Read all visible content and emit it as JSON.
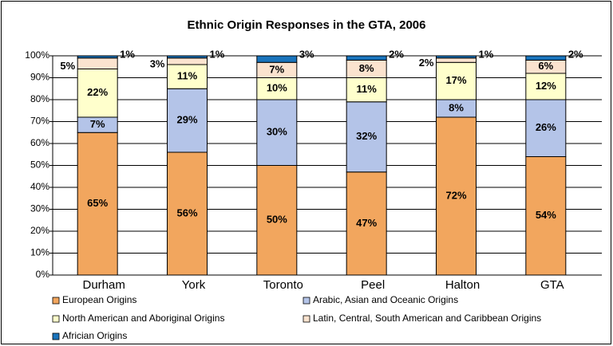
{
  "chart_data": {
    "type": "stacked_bar",
    "title": "Ethnic Origin Responses in the GTA, 2006",
    "categories": [
      "Durham",
      "York",
      "Toronto",
      "Peel",
      "Halton",
      "GTA"
    ],
    "series": [
      {
        "name": "European Origins",
        "color": "#f2a65e",
        "values": [
          65,
          56,
          50,
          47,
          72,
          54
        ],
        "value_labels": [
          "65%",
          "56%",
          "50%",
          "47%",
          "72%",
          "54%"
        ]
      },
      {
        "name": "Arabic, Asian and Oceanic Origins",
        "color": "#b4c4e8",
        "values": [
          7,
          29,
          30,
          32,
          8,
          26
        ],
        "value_labels": [
          "7%",
          "29%",
          "30%",
          "32%",
          "8%",
          "26%"
        ]
      },
      {
        "name": "North American and Aboriginal Origins",
        "color": "#ffffcc",
        "values": [
          22,
          11,
          10,
          11,
          17,
          12
        ],
        "value_labels": [
          "22%",
          "11%",
          "10%",
          "11%",
          "17%",
          "12%"
        ]
      },
      {
        "name": "Latin, Central, South American and Caribbean Origins",
        "color": "#fbe3cf",
        "values": [
          5,
          3,
          7,
          8,
          2,
          6
        ],
        "value_labels": [
          "5%",
          "3%",
          "7%",
          "8%",
          "2%",
          "6%"
        ]
      },
      {
        "name": "Africian Origins",
        "color": "#1a74bc",
        "values": [
          1,
          1,
          3,
          2,
          1,
          2
        ],
        "value_labels": [
          "1%",
          "1%",
          "3%",
          "2%",
          "1%",
          "2%"
        ]
      }
    ],
    "ylim": [
      0,
      100
    ],
    "yticks": [
      {
        "value": 0,
        "label": "0%"
      },
      {
        "value": 10,
        "label": "10%"
      },
      {
        "value": 20,
        "label": "20%"
      },
      {
        "value": 30,
        "label": "30%"
      },
      {
        "value": 40,
        "label": "40%"
      },
      {
        "value": 50,
        "label": "50%"
      },
      {
        "value": 60,
        "label": "60%"
      },
      {
        "value": 70,
        "label": "70%"
      },
      {
        "value": 80,
        "label": "80%"
      },
      {
        "value": 90,
        "label": "90%"
      },
      {
        "value": 100,
        "label": "100%"
      }
    ],
    "grid": true
  }
}
